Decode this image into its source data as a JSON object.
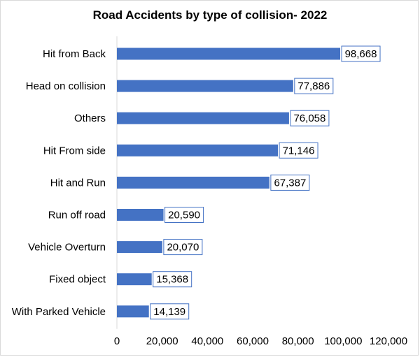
{
  "chart_data": {
    "type": "bar",
    "orientation": "horizontal",
    "title": "Road Accidents by type of collision- 2022",
    "categories": [
      "Hit from Back",
      "Head on collision",
      "Others",
      "Hit From side",
      "Hit and Run",
      "Run off road",
      "Vehicle Overturn",
      "Fixed object",
      "With Parked Vehicle"
    ],
    "values": [
      98668,
      77886,
      76058,
      71146,
      67387,
      20590,
      20070,
      15368,
      14139
    ],
    "data_labels": [
      "98,668",
      "77,886",
      "76,058",
      "71,146",
      "67,387",
      "20,590",
      "20,070",
      "15,368",
      "14,139"
    ],
    "xticks": [
      0,
      20000,
      40000,
      60000,
      80000,
      100000,
      120000
    ],
    "xtick_labels": [
      "0",
      "20,000",
      "40,000",
      "60,000",
      "80,000",
      "100,000",
      "120,000"
    ],
    "xlim": [
      0,
      120000
    ],
    "xlabel": "",
    "ylabel": "",
    "grid": false,
    "legend": "none",
    "bar_color": "#4472c4",
    "label_border_color": "#4472c4"
  }
}
